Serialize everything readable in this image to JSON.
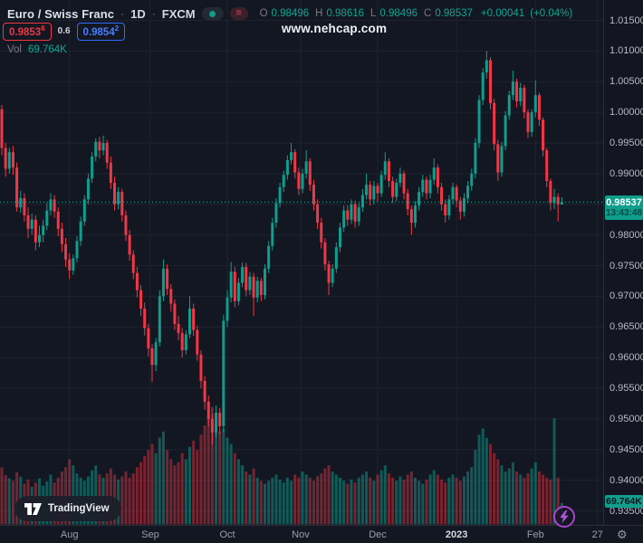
{
  "header": {
    "symbol_title": "Euro / Swiss Franc",
    "sep": "·",
    "timeframe": "1D",
    "exchange": "FXCM",
    "ohlc": {
      "o_label": "O",
      "o_value": "0.98496",
      "h_label": "H",
      "h_value": "0.98616",
      "l_label": "L",
      "l_value": "0.98496",
      "c_label": "C",
      "c_value": "0.98537",
      "change": "+0.00041",
      "change_pct": "(+0.04%)"
    },
    "bid_main": "0.9853",
    "bid_sup": "6",
    "spread": "0.6",
    "ask_main": "0.9854",
    "ask_sup": "2",
    "vol_label": "Vol",
    "vol_value": "69.764K",
    "watermark": "www.nehcap.com"
  },
  "logo": {
    "text": "TradingView"
  },
  "axis": {
    "settings_icon": "gear-icon"
  },
  "colors": {
    "background": "#131722",
    "grid": "#1e2330",
    "up": "#0f9d8c",
    "down": "#f23645",
    "volume_up": "rgba(15,157,140,0.5)",
    "volume_down": "rgba(242,54,69,0.45)",
    "current_line": "#1db5a0",
    "badge_bg": "#0f9d8c",
    "bid_red": "#f23645",
    "ask_blue": "#2962ff",
    "axis_text": "#b7bac4",
    "purple_accent": "#a944cf"
  },
  "chart_data": {
    "type": "candlestick",
    "title": "Euro / Swiss Franc, 1D, FXCM",
    "symbol": "EUR/CHF",
    "timeframe": "1D",
    "legend": "candles are daily OHLC; lower pane is volume",
    "ylim": [
      0.935,
      1.015
    ],
    "grid": true,
    "price_ticks": [
      1.015,
      1.01,
      1.005,
      1.0,
      0.995,
      0.99,
      0.985,
      0.98,
      0.975,
      0.97,
      0.965,
      0.96,
      0.955,
      0.95,
      0.945,
      0.94,
      0.935
    ],
    "time_ticks": [
      {
        "label": "Aug",
        "i": 18,
        "major": false
      },
      {
        "label": "Sep",
        "i": 39.5,
        "major": false
      },
      {
        "label": "Oct",
        "i": 60,
        "major": false
      },
      {
        "label": "Nov",
        "i": 79.5,
        "major": false
      },
      {
        "label": "Dec",
        "i": 100,
        "major": false
      },
      {
        "label": "2023",
        "i": 121,
        "major": true
      },
      {
        "label": "Feb",
        "i": 142,
        "major": false
      },
      {
        "label": "27",
        "i": 158.5,
        "major": false
      }
    ],
    "current_price": 0.98537,
    "current_price_label": "0.98537",
    "countdown": "13:43:48",
    "current_volume_label": "69.764K",
    "candles": [
      [
        1.0005,
        1.0012,
        0.993,
        0.9942
      ],
      [
        0.9942,
        0.995,
        0.9895,
        0.9908
      ],
      [
        0.9908,
        0.9942,
        0.99,
        0.9935
      ],
      [
        0.9935,
        0.9945,
        0.9898,
        0.991
      ],
      [
        0.991,
        0.9918,
        0.9838,
        0.9845
      ],
      [
        0.9845,
        0.9872,
        0.9836,
        0.986
      ],
      [
        0.986,
        0.9868,
        0.9822,
        0.9832
      ],
      [
        0.9832,
        0.9845,
        0.9795,
        0.981
      ],
      [
        0.981,
        0.9835,
        0.98,
        0.9825
      ],
      [
        0.9825,
        0.9832,
        0.9775,
        0.9788
      ],
      [
        0.9788,
        0.9815,
        0.978,
        0.98
      ],
      [
        0.98,
        0.9825,
        0.9788,
        0.9815
      ],
      [
        0.9815,
        0.9852,
        0.9808,
        0.984
      ],
      [
        0.984,
        0.9868,
        0.9832,
        0.9858
      ],
      [
        0.9858,
        0.9865,
        0.9828,
        0.9838
      ],
      [
        0.9838,
        0.9845,
        0.9798,
        0.981
      ],
      [
        0.981,
        0.982,
        0.9772,
        0.9785
      ],
      [
        0.9785,
        0.9795,
        0.9748,
        0.976
      ],
      [
        0.976,
        0.977,
        0.9728,
        0.9742
      ],
      [
        0.9742,
        0.9768,
        0.9735,
        0.9762
      ],
      [
        0.9762,
        0.9798,
        0.9755,
        0.979
      ],
      [
        0.979,
        0.983,
        0.9782,
        0.9822
      ],
      [
        0.9822,
        0.9865,
        0.9815,
        0.9858
      ],
      [
        0.9858,
        0.99,
        0.985,
        0.9892
      ],
      [
        0.9892,
        0.9935,
        0.9885,
        0.9928
      ],
      [
        0.9928,
        0.9958,
        0.992,
        0.9952
      ],
      [
        0.9952,
        0.996,
        0.9925,
        0.9938
      ],
      [
        0.9938,
        0.9962,
        0.993,
        0.995
      ],
      [
        0.995,
        0.9955,
        0.9908,
        0.9918
      ],
      [
        0.9918,
        0.9928,
        0.9875,
        0.9885
      ],
      [
        0.9885,
        0.9895,
        0.984,
        0.985
      ],
      [
        0.985,
        0.9878,
        0.9842,
        0.987
      ],
      [
        0.987,
        0.9875,
        0.9822,
        0.9832
      ],
      [
        0.9832,
        0.984,
        0.979,
        0.98
      ],
      [
        0.98,
        0.9808,
        0.9758,
        0.9768
      ],
      [
        0.9768,
        0.9775,
        0.9728,
        0.9738
      ],
      [
        0.9738,
        0.9748,
        0.9698,
        0.971
      ],
      [
        0.971,
        0.9718,
        0.9668,
        0.968
      ],
      [
        0.968,
        0.969,
        0.9636,
        0.9648
      ],
      [
        0.9648,
        0.9655,
        0.9602,
        0.9615
      ],
      [
        0.9615,
        0.9622,
        0.956,
        0.9588
      ],
      [
        0.9588,
        0.9632,
        0.9578,
        0.9625
      ],
      [
        0.9625,
        0.971,
        0.9618,
        0.97
      ],
      [
        0.97,
        0.976,
        0.9692,
        0.9745
      ],
      [
        0.9745,
        0.9752,
        0.9702,
        0.9712
      ],
      [
        0.9712,
        0.972,
        0.9675,
        0.9688
      ],
      [
        0.9688,
        0.9695,
        0.9645,
        0.9655
      ],
      [
        0.9655,
        0.9668,
        0.9628,
        0.964
      ],
      [
        0.964,
        0.9648,
        0.96,
        0.9612
      ],
      [
        0.9612,
        0.9645,
        0.9605,
        0.9638
      ],
      [
        0.9638,
        0.97,
        0.9632,
        0.968
      ],
      [
        0.968,
        0.9688,
        0.9635,
        0.9645
      ],
      [
        0.9645,
        0.9652,
        0.9595,
        0.9605
      ],
      [
        0.9605,
        0.9612,
        0.955,
        0.9562
      ],
      [
        0.9562,
        0.957,
        0.9515,
        0.9528
      ],
      [
        0.9528,
        0.9538,
        0.9488,
        0.95
      ],
      [
        0.95,
        0.9508,
        0.9458,
        0.9478
      ],
      [
        0.9478,
        0.9522,
        0.947,
        0.951
      ],
      [
        0.951,
        0.9518,
        0.9475,
        0.9488
      ],
      [
        0.9488,
        0.967,
        0.9478,
        0.966
      ],
      [
        0.966,
        0.971,
        0.965,
        0.9698
      ],
      [
        0.9698,
        0.9756,
        0.969,
        0.974
      ],
      [
        0.974,
        0.9748,
        0.9682,
        0.9692
      ],
      [
        0.9692,
        0.973,
        0.9685,
        0.9722
      ],
      [
        0.9722,
        0.9755,
        0.9715,
        0.9748
      ],
      [
        0.9748,
        0.9755,
        0.97,
        0.971
      ],
      [
        0.971,
        0.974,
        0.9702,
        0.9732
      ],
      [
        0.9732,
        0.9738,
        0.9668,
        0.9698
      ],
      [
        0.9698,
        0.9732,
        0.969,
        0.9725
      ],
      [
        0.9725,
        0.973,
        0.9692,
        0.9702
      ],
      [
        0.9702,
        0.9752,
        0.9695,
        0.9745
      ],
      [
        0.9745,
        0.979,
        0.9738,
        0.9782
      ],
      [
        0.9782,
        0.9828,
        0.9775,
        0.982
      ],
      [
        0.982,
        0.986,
        0.9812,
        0.9852
      ],
      [
        0.9852,
        0.9885,
        0.9845,
        0.9878
      ],
      [
        0.9878,
        0.9905,
        0.987,
        0.9898
      ],
      [
        0.9898,
        0.993,
        0.989,
        0.9922
      ],
      [
        0.9922,
        0.995,
        0.9915,
        0.9935
      ],
      [
        0.9935,
        0.994,
        0.9892,
        0.9902
      ],
      [
        0.9902,
        0.991,
        0.9865,
        0.9875
      ],
      [
        0.9875,
        0.9908,
        0.9868,
        0.99
      ],
      [
        0.99,
        0.9938,
        0.9892,
        0.992
      ],
      [
        0.992,
        0.9925,
        0.9872,
        0.9882
      ],
      [
        0.9882,
        0.989,
        0.984,
        0.985
      ],
      [
        0.985,
        0.9858,
        0.981,
        0.982
      ],
      [
        0.982,
        0.9828,
        0.9778,
        0.9788
      ],
      [
        0.9788,
        0.9795,
        0.9742,
        0.9752
      ],
      [
        0.9752,
        0.9758,
        0.9702,
        0.9722
      ],
      [
        0.9722,
        0.9752,
        0.9715,
        0.9745
      ],
      [
        0.9745,
        0.9788,
        0.9738,
        0.978
      ],
      [
        0.978,
        0.982,
        0.9772,
        0.9812
      ],
      [
        0.9812,
        0.9848,
        0.9805,
        0.984
      ],
      [
        0.984,
        0.9848,
        0.9815,
        0.9825
      ],
      [
        0.9825,
        0.9858,
        0.9818,
        0.985
      ],
      [
        0.985,
        0.9856,
        0.9812,
        0.9822
      ],
      [
        0.9822,
        0.9852,
        0.9815,
        0.9845
      ],
      [
        0.9845,
        0.9875,
        0.9838,
        0.9865
      ],
      [
        0.9865,
        0.99,
        0.9858,
        0.9882
      ],
      [
        0.9882,
        0.9888,
        0.9848,
        0.9858
      ],
      [
        0.9858,
        0.9888,
        0.985,
        0.988
      ],
      [
        0.988,
        0.9885,
        0.9855,
        0.9868
      ],
      [
        0.9868,
        0.9905,
        0.9862,
        0.9898
      ],
      [
        0.9898,
        0.9935,
        0.989,
        0.992
      ],
      [
        0.992,
        0.9925,
        0.9878,
        0.9888
      ],
      [
        0.9888,
        0.9895,
        0.9852,
        0.9862
      ],
      [
        0.9862,
        0.9892,
        0.9855,
        0.9885
      ],
      [
        0.9885,
        0.991,
        0.9878,
        0.99
      ],
      [
        0.99,
        0.9905,
        0.9858,
        0.9868
      ],
      [
        0.9868,
        0.9875,
        0.9832,
        0.9842
      ],
      [
        0.9842,
        0.9848,
        0.98,
        0.982
      ],
      [
        0.982,
        0.9855,
        0.9812,
        0.9848
      ],
      [
        0.9848,
        0.9878,
        0.984,
        0.987
      ],
      [
        0.987,
        0.9898,
        0.9862,
        0.989
      ],
      [
        0.989,
        0.9895,
        0.9858,
        0.9868
      ],
      [
        0.9868,
        0.9898,
        0.986,
        0.989
      ],
      [
        0.989,
        0.9925,
        0.9882,
        0.991
      ],
      [
        0.991,
        0.9915,
        0.9868,
        0.9878
      ],
      [
        0.9878,
        0.9885,
        0.984,
        0.985
      ],
      [
        0.985,
        0.9858,
        0.982,
        0.9832
      ],
      [
        0.9832,
        0.9865,
        0.9825,
        0.9858
      ],
      [
        0.9858,
        0.9885,
        0.985,
        0.9878
      ],
      [
        0.9878,
        0.9882,
        0.9845,
        0.9856
      ],
      [
        0.9856,
        0.9862,
        0.9825,
        0.9838
      ],
      [
        0.9838,
        0.9868,
        0.983,
        0.986
      ],
      [
        0.986,
        0.9888,
        0.9852,
        0.988
      ],
      [
        0.988,
        0.9908,
        0.9872,
        0.99
      ],
      [
        0.99,
        0.9958,
        0.9892,
        0.995
      ],
      [
        0.995,
        1.0028,
        0.9942,
        1.002
      ],
      [
        1.002,
        1.0072,
        1.0012,
        1.0065
      ],
      [
        1.0065,
        1.01,
        1.0055,
        1.0085
      ],
      [
        1.0085,
        1.009,
        1.0005,
        1.0015
      ],
      [
        1.0015,
        1.0022,
        0.9938,
        0.9948
      ],
      [
        0.9948,
        0.9955,
        0.9888,
        0.9902
      ],
      [
        0.9902,
        0.9952,
        0.9895,
        0.9945
      ],
      [
        0.9945,
        1.0002,
        0.9938,
        0.9995
      ],
      [
        0.9995,
        1.0035,
        0.9988,
        1.0028
      ],
      [
        1.0028,
        1.0068,
        1.002,
        1.005
      ],
      [
        1.005,
        1.0055,
        1.0008,
        1.0018
      ],
      [
        1.0018,
        1.0048,
        1.001,
        1.004
      ],
      [
        1.004,
        1.0045,
        0.999,
        1.0
      ],
      [
        1.0,
        1.0005,
        0.9958,
        0.9968
      ],
      [
        0.9968,
        1.0005,
        0.996,
        1.0
      ],
      [
        1.0,
        1.0052,
        0.9992,
        1.0028
      ],
      [
        1.0028,
        1.0032,
        0.9978,
        0.9988
      ],
      [
        0.9988,
        0.9992,
        0.9928,
        0.9938
      ],
      [
        0.9938,
        0.9942,
        0.9878,
        0.9888
      ],
      [
        0.9888,
        0.9892,
        0.984,
        0.9852
      ],
      [
        0.9852,
        0.9875,
        0.9842,
        0.9862
      ],
      [
        0.9862,
        0.9868,
        0.9822,
        0.985
      ],
      [
        0.98496,
        0.98616,
        0.98496,
        0.98537
      ]
    ],
    "volumes_k": [
      185,
      160,
      150,
      142,
      170,
      155,
      132,
      146,
      122,
      136,
      150,
      126,
      140,
      162,
      136,
      152,
      172,
      186,
      212,
      192,
      166,
      152,
      142,
      156,
      176,
      192,
      162,
      152,
      166,
      182,
      162,
      146,
      156,
      172,
      152,
      166,
      186,
      202,
      222,
      242,
      262,
      232,
      282,
      302,
      242,
      212,
      192,
      202,
      232,
      212,
      252,
      272,
      242,
      292,
      322,
      352,
      382,
      332,
      302,
      312,
      282,
      262,
      232,
      212,
      192,
      172,
      162,
      182,
      152,
      142,
      132,
      142,
      152,
      162,
      146,
      136,
      152,
      142,
      162,
      152,
      172,
      162,
      152,
      142,
      156,
      166,
      182,
      192,
      172,
      162,
      152,
      142,
      132,
      146,
      136,
      152,
      162,
      172,
      152,
      142,
      162,
      176,
      192,
      166,
      152,
      142,
      156,
      146,
      162,
      172,
      152,
      142,
      132,
      146,
      162,
      176,
      162,
      146,
      136,
      152,
      162,
      152,
      142,
      156,
      172,
      186,
      242,
      292,
      312,
      282,
      262,
      232,
      212,
      192,
      172,
      182,
      202,
      172,
      162,
      152,
      166,
      182,
      202,
      172,
      162,
      152,
      146,
      345,
      152,
      69.764
    ]
  }
}
